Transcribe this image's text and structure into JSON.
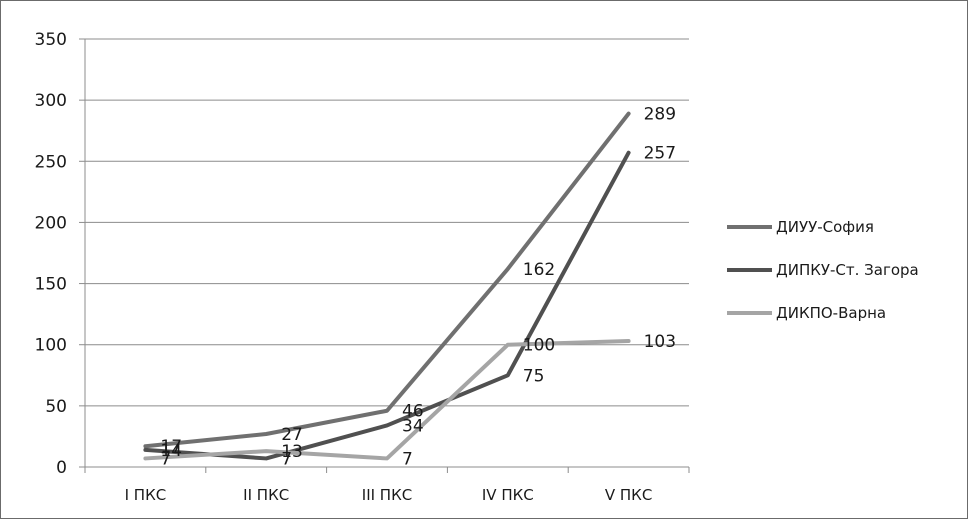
{
  "chart_data": {
    "type": "line",
    "title": "",
    "xlabel": "",
    "ylabel": "",
    "categories": [
      "I ПКС",
      "II ПКС",
      "III ПКС",
      "IV ПКС",
      "V ПКС"
    ],
    "ylim": [
      0,
      350
    ],
    "yticks": [
      0,
      50,
      100,
      150,
      200,
      250,
      300,
      350
    ],
    "grid": true,
    "legend_position": "right",
    "series": [
      {
        "name": "ДИУУ-София",
        "values": [
          17,
          27,
          46,
          162,
          289
        ],
        "color": "#707070"
      },
      {
        "name": "ДИПКУ-Ст. Загора",
        "values": [
          14,
          7,
          34,
          75,
          257
        ],
        "color": "#505050"
      },
      {
        "name": "ДИКПО-Варна",
        "values": [
          7,
          13,
          7,
          100,
          103
        ],
        "color": "#a5a5a5"
      }
    ]
  }
}
